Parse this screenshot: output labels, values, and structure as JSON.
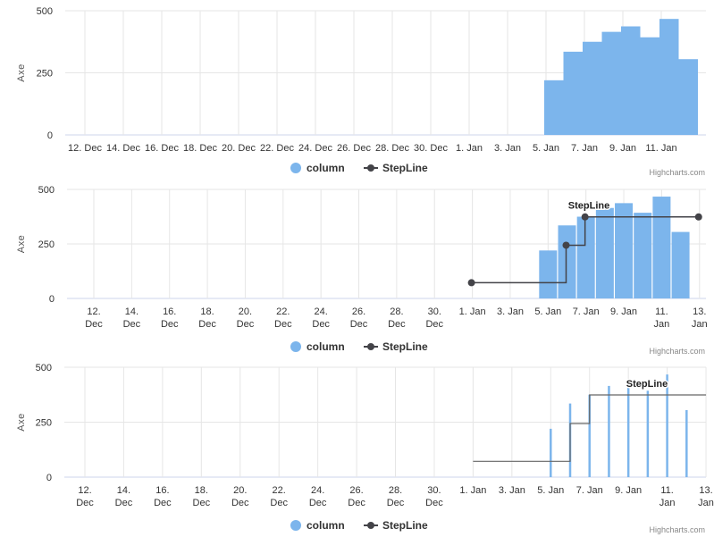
{
  "credits": "Highcharts.com",
  "colors": {
    "column": "#7cb5ec",
    "stepline": "#434348",
    "grid": "#e6e6e6"
  },
  "legend": {
    "column": "column",
    "stepline": "StepLine"
  },
  "axis_title": "Axe",
  "step_label": "StepLine",
  "chart_data": [
    {
      "type": "bar",
      "ylabel": "Axe",
      "ylim": [
        0,
        500
      ],
      "y_ticks": [
        0,
        250,
        500
      ],
      "x_tick_labels": [
        "12. Dec",
        "14. Dec",
        "16. Dec",
        "18. Dec",
        "20. Dec",
        "22. Dec",
        "24. Dec",
        "26. Dec",
        "28. Dec",
        "30. Dec",
        "1. Jan",
        "3. Jan",
        "5. Jan",
        "7. Jan",
        "9. Jan",
        "11. Jan"
      ],
      "series": [
        {
          "name": "column",
          "type": "column",
          "x": [
            "2013-01-05",
            "2013-01-06",
            "2013-01-07",
            "2013-01-08",
            "2013-01-09",
            "2013-01-10",
            "2013-01-11",
            "2013-01-12"
          ],
          "values": [
            220,
            335,
            375,
            415,
            437,
            393,
            467,
            305
          ]
        }
      ],
      "legend": [
        "column",
        "StepLine"
      ]
    },
    {
      "type": "bar",
      "ylabel": "Axe",
      "ylim": [
        0,
        500
      ],
      "y_ticks": [
        0,
        250,
        500
      ],
      "x_tick_labels": [
        "12. Dec",
        "14. Dec",
        "16. Dec",
        "18. Dec",
        "20. Dec",
        "22. Dec",
        "24. Dec",
        "26. Dec",
        "28. Dec",
        "30. Dec",
        "1. Jan",
        "3. Jan",
        "5. Jan",
        "7. Jan",
        "9. Jan",
        "11. Jan",
        "13. Jan"
      ],
      "series": [
        {
          "name": "column",
          "type": "column",
          "x": [
            "2013-01-05",
            "2013-01-06",
            "2013-01-07",
            "2013-01-08",
            "2013-01-09",
            "2013-01-10",
            "2013-01-11",
            "2013-01-12"
          ],
          "values": [
            220,
            335,
            375,
            415,
            437,
            393,
            467,
            305
          ]
        },
        {
          "name": "StepLine",
          "type": "line",
          "step": true,
          "x": [
            "2013-01-01",
            "2013-01-06",
            "2013-01-07",
            "2013-01-13"
          ],
          "values": [
            72,
            244,
            374,
            374
          ]
        }
      ],
      "legend": [
        "column",
        "StepLine"
      ]
    },
    {
      "type": "bar",
      "ylabel": "Axe",
      "ylim": [
        0,
        500
      ],
      "y_ticks": [
        0,
        250,
        500
      ],
      "x_tick_labels": [
        "12. Dec",
        "14. Dec",
        "16. Dec",
        "18. Dec",
        "20. Dec",
        "22. Dec",
        "24. Dec",
        "26. Dec",
        "28. Dec",
        "30. Dec",
        "1. Jan",
        "3. Jan",
        "5. Jan",
        "7. Jan",
        "9. Jan",
        "11. Jan",
        "13. Jan"
      ],
      "series": [
        {
          "name": "column",
          "type": "column",
          "x": [
            "2013-01-05",
            "2013-01-06",
            "2013-01-07",
            "2013-01-08",
            "2013-01-09",
            "2013-01-10",
            "2013-01-11",
            "2013-01-12"
          ],
          "values": [
            220,
            335,
            375,
            415,
            437,
            393,
            467,
            305
          ]
        },
        {
          "name": "StepLine",
          "type": "line",
          "step": true,
          "x": [
            "2013-01-01",
            "2013-01-06",
            "2013-01-07",
            "2013-01-13"
          ],
          "values": [
            72,
            244,
            374,
            374
          ]
        }
      ],
      "legend": [
        "column",
        "StepLine"
      ]
    }
  ]
}
